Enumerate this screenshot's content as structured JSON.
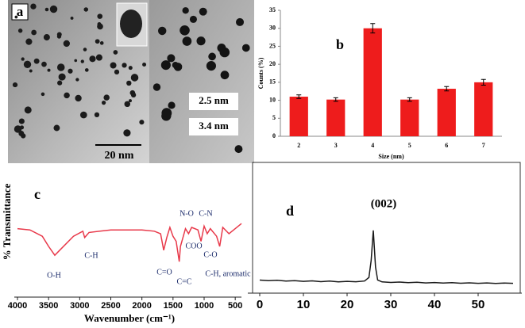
{
  "image_panel": {
    "label": "a",
    "scale_bar": "20 nm",
    "sizes": [
      "2.5 nm",
      "3.4 nm"
    ]
  },
  "chart_data": [
    {
      "type": "bar",
      "label": "b",
      "xlabel": "Size (nm)",
      "ylabel": "Counts (%)",
      "categories": [
        "2",
        "3",
        "4",
        "5",
        "6",
        "7"
      ],
      "values": [
        11,
        10.2,
        30,
        10.2,
        13.2,
        15
      ],
      "errors": [
        0.5,
        0.5,
        1.3,
        0.5,
        0.6,
        0.8
      ],
      "color": "#ee1c1c",
      "ylim": [
        0,
        35
      ],
      "yticks": [
        0,
        5,
        10,
        15,
        20,
        25,
        30,
        35
      ]
    },
    {
      "type": "line",
      "label": "c",
      "xlabel": "Wavenumber (cm⁻¹)",
      "ylabel": "% Transmittance",
      "x": [
        4000,
        3800,
        3600,
        3500,
        3400,
        3300,
        3100,
        2950,
        2920,
        2850,
        2500,
        2000,
        1800,
        1700,
        1650,
        1600,
        1550,
        1500,
        1450,
        1400,
        1380,
        1300,
        1250,
        1200,
        1100,
        1050,
        1000,
        950,
        900,
        800,
        750,
        700,
        600,
        500,
        400
      ],
      "values": [
        54,
        53,
        48,
        40,
        33,
        38,
        48,
        52,
        47,
        51,
        53,
        53,
        52,
        50,
        37,
        47,
        55,
        48,
        44,
        28,
        40,
        54,
        50,
        55,
        53,
        44,
        56,
        50,
        54,
        48,
        40,
        55,
        50,
        54,
        58
      ],
      "color": "#e8394a",
      "xlim": [
        4000,
        400
      ],
      "xticks": [
        4000,
        3500,
        3000,
        2500,
        2000,
        1500,
        1000,
        500
      ],
      "ylim": [
        0,
        100
      ],
      "annotations": [
        "O-H",
        "C-H",
        "C=O",
        "C=C",
        "N-O",
        "C-N",
        "COO",
        "C-O",
        "C-H, aromatic"
      ]
    },
    {
      "type": "line",
      "label": "d",
      "x": [
        0,
        2,
        4,
        6,
        8,
        10,
        12,
        14,
        16,
        18,
        20,
        22,
        24,
        25,
        25.5,
        26,
        26.5,
        27,
        28,
        30,
        32,
        34,
        36,
        38,
        40,
        42,
        44,
        46,
        48,
        50,
        52,
        54,
        56,
        58
      ],
      "values": [
        10,
        9.5,
        9.8,
        9.2,
        9.6,
        9,
        9.4,
        8.8,
        9.2,
        8.6,
        9,
        8.7,
        9.3,
        12,
        25,
        48,
        20,
        10,
        8.6,
        8.2,
        8.5,
        8,
        8.3,
        7.8,
        8.1,
        7.7,
        8,
        7.6,
        7.9,
        7.5,
        7.8,
        7.4,
        7.7,
        7.5
      ],
      "color": "#1a1a1a",
      "xlim": [
        -2,
        60
      ],
      "xticks": [
        0,
        10,
        20,
        30,
        40,
        50
      ],
      "ylim": [
        0,
        100
      ],
      "annotations": [
        "(002)"
      ]
    }
  ]
}
